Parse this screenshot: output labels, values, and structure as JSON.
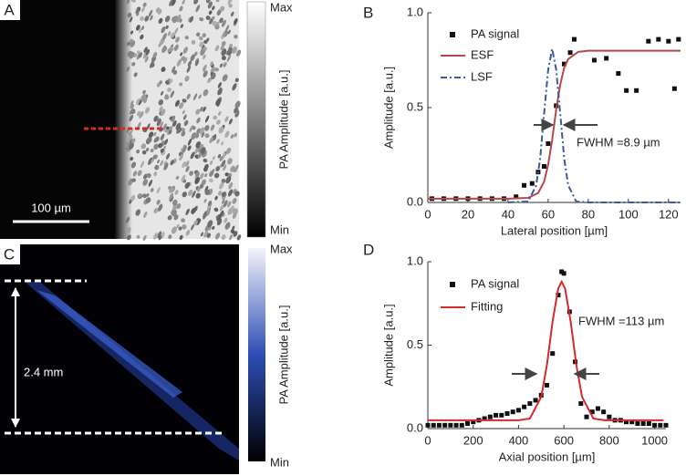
{
  "panels": {
    "A": {
      "label": "A",
      "scalebar": "100 µm",
      "colorbar": {
        "max": "Max",
        "min": "Min",
        "label": "PA Amplitude [a.u.]"
      }
    },
    "C": {
      "label": "C",
      "scalebar": "2.4 mm",
      "colorbar": {
        "max": "Max",
        "min": "Min",
        "label": "PA Amplitude [a.u.]"
      }
    }
  },
  "chart_data": [
    {
      "type": "line",
      "label": "B",
      "xlabel": "Lateral position [µm]",
      "ylabel": "Amplitude [a.u.]",
      "annotation": "FWHM =8.9 µm",
      "xlim": [
        0,
        126
      ],
      "ylim": [
        0,
        1
      ],
      "xticks": [
        0,
        20,
        40,
        60,
        80,
        100,
        120
      ],
      "yticks": [
        {
          "value": 0,
          "label": "0.0"
        },
        0.5,
        {
          "value": 1,
          "label": "1.0"
        }
      ],
      "series": [
        {
          "name": "PA signal",
          "color": "#111111",
          "marker": "square",
          "x": [
            2,
            8,
            14,
            20,
            26,
            32,
            38,
            44,
            48,
            52,
            55,
            58,
            60,
            64,
            68,
            71,
            73,
            83,
            89,
            95,
            99,
            104,
            110,
            115,
            120,
            123,
            125
          ],
          "values": [
            0.02,
            0.02,
            0.02,
            0.02,
            0.02,
            0.02,
            0.02,
            0.03,
            0.09,
            0.1,
            0.16,
            0.19,
            0.31,
            0.51,
            0.73,
            0.79,
            0.86,
            0.75,
            0.76,
            0.68,
            0.59,
            0.59,
            0.85,
            0.86,
            0.85,
            0.6,
            0.86
          ]
        },
        {
          "name": "ESF",
          "color": "#b5484b",
          "line": "solid",
          "x": [
            0,
            40,
            50,
            55,
            58,
            60,
            62,
            63,
            64,
            66,
            68,
            70,
            75,
            80,
            126
          ],
          "values": [
            0.02,
            0.02,
            0.024,
            0.05,
            0.11,
            0.2,
            0.33,
            0.41,
            0.49,
            0.62,
            0.71,
            0.756,
            0.794,
            0.8,
            0.8
          ]
        },
        {
          "name": "LSF",
          "color": "#3c5a9a",
          "line": "dashdot",
          "x": [
            40,
            50,
            54,
            56,
            58,
            60,
            62,
            64,
            66,
            68,
            70,
            74,
            80,
            126
          ],
          "values": [
            0,
            0.005,
            0.089,
            0.23,
            0.47,
            0.7,
            0.81,
            0.7,
            0.47,
            0.23,
            0.09,
            0.005,
            0,
            0
          ]
        }
      ]
    },
    {
      "type": "line",
      "label": "D",
      "xlabel": "Axial position [µm]",
      "ylabel": "Amplitude [a.u.]",
      "annotation": "FWHM =113 µm",
      "xlim": [
        0,
        1050
      ],
      "ylim": [
        0,
        1
      ],
      "xticks": [
        0,
        200,
        400,
        600,
        800,
        1000
      ],
      "yticks": [
        {
          "value": 0,
          "label": "0.0"
        },
        0.5,
        {
          "value": 1,
          "label": "1.0"
        }
      ],
      "series": [
        {
          "name": "PA signal",
          "color": "#111111",
          "marker": "square",
          "x": [
            0,
            25,
            50,
            75,
            100,
            125,
            150,
            175,
            200,
            225,
            250,
            275,
            300,
            325,
            350,
            375,
            400,
            425,
            450,
            475,
            500,
            525,
            550,
            575,
            590,
            600,
            625,
            650,
            675,
            700,
            725,
            750,
            775,
            800,
            825,
            850,
            875,
            900,
            925,
            950,
            975,
            1000,
            1025,
            1050
          ],
          "values": [
            0.02,
            0.02,
            0.02,
            0.02,
            0.02,
            0.02,
            0.02,
            0.03,
            0.04,
            0.05,
            0.06,
            0.07,
            0.08,
            0.08,
            0.09,
            0.1,
            0.11,
            0.13,
            0.15,
            0.17,
            0.2,
            0.26,
            0.45,
            0.8,
            0.94,
            0.93,
            0.7,
            0.4,
            0.15,
            0.07,
            0.1,
            0.12,
            0.1,
            0.07,
            0.05,
            0.05,
            0.04,
            0.04,
            0.03,
            0.03,
            0.03,
            0.02,
            0.02,
            0.02
          ]
        },
        {
          "name": "Fitting",
          "color": "#d42a2a",
          "line": "solid",
          "x": [
            0,
            400,
            450,
            500,
            525,
            550,
            575,
            590,
            605,
            630,
            655,
            680,
            730,
            780,
            1040
          ],
          "values": [
            0.05,
            0.05,
            0.06,
            0.19,
            0.38,
            0.64,
            0.84,
            0.88,
            0.84,
            0.64,
            0.38,
            0.19,
            0.06,
            0.05,
            0.05
          ]
        }
      ]
    }
  ]
}
